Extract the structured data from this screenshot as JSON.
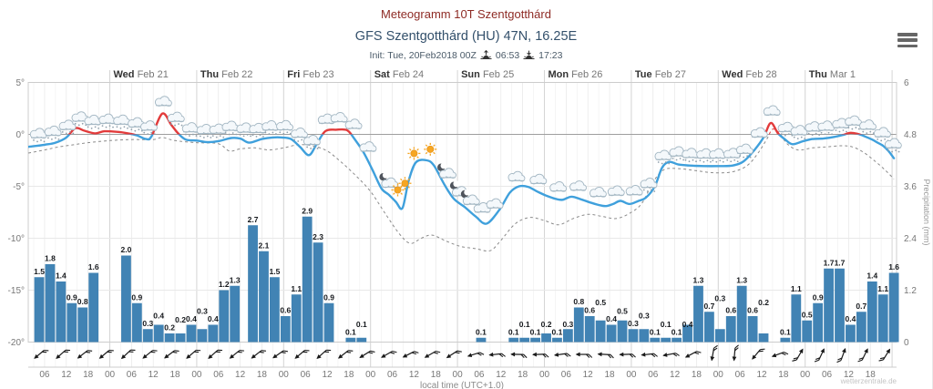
{
  "header": {
    "title": "Meteogramm 10T Szentgotthárd",
    "subtitle": "GFS Szentgotthárd (HU) 47N, 16.25E",
    "init_label": "Init: Tue, 20Feb2018 00Z",
    "sunrise": "06:53",
    "sunset": "17:23"
  },
  "menu": {
    "icon": "hamburger-menu-icon"
  },
  "chart_data": {
    "type": "meteogram (line + bar)",
    "title": "GFS Szentgotthárd (HU) 47N, 16.25E",
    "x_axis": {
      "unit": "hours since Tue 20Feb2018 00:00 local",
      "title": "local time (UTC+1.0)",
      "time_label_cycle": [
        "06",
        "12",
        "18",
        "00"
      ],
      "time_label_start": 6,
      "time_label_end": 234,
      "time_label_step": 6
    },
    "days": [
      {
        "label": "Wed",
        "date": "Feb 21"
      },
      {
        "label": "Thu",
        "date": "Feb 22"
      },
      {
        "label": "Fri",
        "date": "Feb 23"
      },
      {
        "label": "Sat",
        "date": "Feb 24"
      },
      {
        "label": "Sun",
        "date": "Feb 25"
      },
      {
        "label": "Mon",
        "date": "Feb 26"
      },
      {
        "label": "Tue",
        "date": "Feb 27"
      },
      {
        "label": "Wed",
        "date": "Feb 28"
      },
      {
        "label": "Thu",
        "date": "Mar 1"
      }
    ],
    "temp_axis": {
      "ticks": [
        {
          "label": "5°",
          "v": 5
        },
        {
          "label": "0°",
          "v": 0
        },
        {
          "label": "-5°",
          "v": -5
        },
        {
          "label": "-10°",
          "v": -10
        },
        {
          "label": "-15°",
          "v": -15
        },
        {
          "label": "-20°",
          "v": -20
        }
      ]
    },
    "precip_axis": {
      "title": "Precipitation (mm)",
      "ticks": [
        {
          "label": "6",
          "v": 6
        },
        {
          "label": "4.8",
          "v": 4.8
        },
        {
          "label": "3.6",
          "v": 3.6
        },
        {
          "label": "2.4",
          "v": 2.4
        },
        {
          "label": "1.2",
          "v": 1.2
        },
        {
          "label": "0",
          "v": 0
        }
      ]
    },
    "temperature_c": [
      [
        1.5,
        -1.2
      ],
      [
        6,
        -1.0
      ],
      [
        9,
        -0.8
      ],
      [
        12,
        -0.3
      ],
      [
        14.5,
        0.6
      ],
      [
        17,
        0.35
      ],
      [
        20,
        0.1
      ],
      [
        22.5,
        0.3
      ],
      [
        26,
        0.25
      ],
      [
        29,
        0.1
      ],
      [
        31.5,
        -0.1
      ],
      [
        34,
        -0.45
      ],
      [
        35.5,
        -0.2
      ],
      [
        38.5,
        2.0
      ],
      [
        41,
        0.9
      ],
      [
        43,
        0.05
      ],
      [
        45,
        -0.5
      ],
      [
        48,
        -0.6
      ],
      [
        51,
        -0.75
      ],
      [
        54,
        -0.65
      ],
      [
        57.5,
        -0.35
      ],
      [
        60,
        -0.4
      ],
      [
        62.5,
        -0.8
      ],
      [
        66,
        -0.45
      ],
      [
        69,
        -0.3
      ],
      [
        71.5,
        -0.3
      ],
      [
        74,
        -0.45
      ],
      [
        76.5,
        -1.2
      ],
      [
        79,
        -2.0
      ],
      [
        81,
        -1.0
      ],
      [
        83.5,
        0.3
      ],
      [
        86.5,
        0.45
      ],
      [
        89.5,
        0.4
      ],
      [
        91.5,
        -0.4
      ],
      [
        94,
        -1.7
      ],
      [
        96.5,
        -3.4
      ],
      [
        99,
        -5.2
      ],
      [
        101,
        -5.8
      ],
      [
        103,
        -6.5
      ],
      [
        104.8,
        -7.1
      ],
      [
        106.5,
        -4.5
      ],
      [
        108.5,
        -2.7
      ],
      [
        111.5,
        -2.5
      ],
      [
        113.5,
        -3.0
      ],
      [
        116.5,
        -4.9
      ],
      [
        119,
        -6.2
      ],
      [
        122,
        -7.0
      ],
      [
        125,
        -7.9
      ],
      [
        128,
        -8.6
      ],
      [
        131.5,
        -7.3
      ],
      [
        134.5,
        -5.6
      ],
      [
        137,
        -5.0
      ],
      [
        139.5,
        -5.05
      ],
      [
        142,
        -5.5
      ],
      [
        144.5,
        -5.9
      ],
      [
        147,
        -6.2
      ],
      [
        149,
        -6.3
      ],
      [
        151.5,
        -6.0
      ],
      [
        154.5,
        -6.3
      ],
      [
        157,
        -6.6
      ],
      [
        159,
        -6.8
      ],
      [
        161,
        -6.9
      ],
      [
        163,
        -6.7
      ],
      [
        165,
        -6.4
      ],
      [
        167.5,
        -6.7
      ],
      [
        170,
        -6.4
      ],
      [
        172,
        -6.1
      ],
      [
        174.5,
        -5.0
      ],
      [
        176.5,
        -3.2
      ],
      [
        178.5,
        -2.65
      ],
      [
        181,
        -2.9
      ],
      [
        184,
        -3.0
      ],
      [
        188,
        -3.05
      ],
      [
        192,
        -3.05
      ],
      [
        196,
        -3.0
      ],
      [
        199,
        -2.6
      ],
      [
        202,
        -1.5
      ],
      [
        204.5,
        -0.3
      ],
      [
        206.5,
        1.1
      ],
      [
        208.5,
        0.1
      ],
      [
        210.5,
        -0.5
      ],
      [
        212.5,
        -0.95
      ],
      [
        215.5,
        -0.65
      ],
      [
        218,
        -0.45
      ],
      [
        221,
        -0.4
      ],
      [
        224,
        -0.25
      ],
      [
        226.5,
        -0.05
      ],
      [
        228.5,
        0.15
      ],
      [
        230.5,
        0.05
      ],
      [
        232.5,
        -0.2
      ],
      [
        234.5,
        -0.5
      ],
      [
        236,
        -0.8
      ],
      [
        237.5,
        -1.1
      ],
      [
        239,
        -1.6
      ],
      [
        240.5,
        -2.3
      ]
    ],
    "dewpoint_c": [
      [
        1.5,
        -1.8
      ],
      [
        6,
        -1.5
      ],
      [
        10,
        -1.2
      ],
      [
        14,
        -1.0
      ],
      [
        18,
        -0.8
      ],
      [
        24,
        -0.6
      ],
      [
        30,
        -0.5
      ],
      [
        36,
        -0.5
      ],
      [
        38.5,
        -0.3
      ],
      [
        42,
        -0.6
      ],
      [
        48,
        -0.8
      ],
      [
        54,
        -0.9
      ],
      [
        57,
        -1.6
      ],
      [
        60,
        -1.4
      ],
      [
        64,
        -1.3
      ],
      [
        68,
        -1.5
      ],
      [
        72,
        -1.3
      ],
      [
        76,
        -1.0
      ],
      [
        80,
        -1.1
      ],
      [
        84,
        -1.6
      ],
      [
        88,
        -2.7
      ],
      [
        92,
        -4.0
      ],
      [
        96,
        -5.5
      ],
      [
        100,
        -7.6
      ],
      [
        104,
        -9.6
      ],
      [
        107,
        -10.5
      ],
      [
        110,
        -10.0
      ],
      [
        113,
        -9.7
      ],
      [
        117,
        -10.3
      ],
      [
        121,
        -10.8
      ],
      [
        125,
        -11.0
      ],
      [
        129,
        -11.2
      ],
      [
        132,
        -10.2
      ],
      [
        136,
        -8.6
      ],
      [
        140,
        -8.0
      ],
      [
        144,
        -8.3
      ],
      [
        148,
        -8.7
      ],
      [
        152,
        -8.1
      ],
      [
        156,
        -7.7
      ],
      [
        160,
        -7.9
      ],
      [
        164,
        -8.1
      ],
      [
        168,
        -7.5
      ],
      [
        171,
        -6.6
      ],
      [
        174,
        -4.6
      ],
      [
        177,
        -3.4
      ],
      [
        181,
        -3.3
      ],
      [
        186,
        -3.5
      ],
      [
        191,
        -3.7
      ],
      [
        196,
        -3.6
      ],
      [
        200,
        -3.0
      ],
      [
        203,
        -1.8
      ],
      [
        205.5,
        -0.4
      ],
      [
        207,
        0.5
      ],
      [
        209,
        0.1
      ],
      [
        211,
        -0.9
      ],
      [
        214,
        -1.5
      ],
      [
        218,
        -1.3
      ],
      [
        222,
        -1.2
      ],
      [
        226,
        -1.1
      ],
      [
        229,
        -1.2
      ],
      [
        232,
        -1.7
      ],
      [
        235,
        -2.5
      ],
      [
        238,
        -3.4
      ],
      [
        240.5,
        -4.3
      ]
    ],
    "precip_bars_mm_3h": [
      [
        3,
        1.5
      ],
      [
        6,
        1.8
      ],
      [
        9,
        1.4
      ],
      [
        12,
        0.9
      ],
      [
        15,
        0.8
      ],
      [
        18,
        1.6
      ],
      [
        27,
        2.0
      ],
      [
        30,
        0.9
      ],
      [
        33,
        0.3
      ],
      [
        36,
        0.4
      ],
      [
        39,
        0.2
      ],
      [
        42,
        0.2
      ],
      [
        45,
        0.4
      ],
      [
        48,
        0.3
      ],
      [
        51,
        0.4
      ],
      [
        54,
        1.2
      ],
      [
        57,
        1.3
      ],
      [
        62,
        2.7
      ],
      [
        65,
        2.1
      ],
      [
        68,
        1.5
      ],
      [
        71,
        0.6
      ],
      [
        74,
        1.1
      ],
      [
        77,
        2.9
      ],
      [
        80,
        2.3
      ],
      [
        83,
        0.9
      ],
      [
        89,
        0.1
      ],
      [
        92,
        0.1
      ],
      [
        125,
        0.1
      ],
      [
        134,
        0.1
      ],
      [
        137,
        0.1
      ],
      [
        140,
        0.1
      ],
      [
        143,
        0.2
      ],
      [
        146,
        0.1
      ],
      [
        149,
        0.3
      ],
      [
        152,
        0.8
      ],
      [
        155,
        0.6
      ],
      [
        158,
        0.5
      ],
      [
        161,
        0.4
      ],
      [
        164,
        0.5
      ],
      [
        167,
        0.3
      ],
      [
        170,
        0.3
      ],
      [
        173,
        0.1
      ],
      [
        176,
        0.1
      ],
      [
        179,
        0.1
      ],
      [
        182,
        0.4
      ],
      [
        185,
        1.3
      ],
      [
        188,
        0.7
      ],
      [
        191,
        0.3
      ],
      [
        194,
        0.6
      ],
      [
        197,
        1.3
      ],
      [
        200,
        0.6
      ],
      [
        203,
        0.2
      ],
      [
        209,
        0.1
      ],
      [
        212,
        1.1
      ],
      [
        215,
        0.5
      ],
      [
        218,
        0.9
      ],
      [
        221,
        1.7
      ],
      [
        224,
        1.7
      ],
      [
        227,
        0.4
      ],
      [
        230,
        0.7
      ],
      [
        233,
        1.4
      ],
      [
        236,
        1.1
      ],
      [
        239,
        1.6
      ]
    ],
    "weather_icons": [
      [
        4,
        "sc"
      ],
      [
        8,
        "sc"
      ],
      [
        12,
        "sc"
      ],
      [
        15.5,
        "sc"
      ],
      [
        19,
        "sc"
      ],
      [
        23,
        "sc"
      ],
      [
        27,
        "sc"
      ],
      [
        31,
        "sc"
      ],
      [
        34.5,
        "sc"
      ],
      [
        38.5,
        "c"
      ],
      [
        42,
        "sc"
      ],
      [
        46,
        "sc"
      ],
      [
        50,
        "sc"
      ],
      [
        53.5,
        "sc"
      ],
      [
        57,
        "sc"
      ],
      [
        61,
        "sc"
      ],
      [
        64.5,
        "sc"
      ],
      [
        68,
        "sc"
      ],
      [
        72,
        "sc"
      ],
      [
        76,
        "sc"
      ],
      [
        79.5,
        "sc"
      ],
      [
        83.5,
        "c"
      ],
      [
        87,
        "c"
      ],
      [
        91,
        "c"
      ],
      [
        95,
        "c"
      ],
      [
        100,
        "mc"
      ],
      [
        103.5,
        "s"
      ],
      [
        105.5,
        "s"
      ],
      [
        108,
        "s"
      ],
      [
        112.5,
        "s"
      ],
      [
        116,
        "mc"
      ],
      [
        119.5,
        "mc"
      ],
      [
        122.5,
        "mc"
      ],
      [
        126.5,
        "c"
      ],
      [
        130,
        "c"
      ],
      [
        136,
        "c"
      ],
      [
        142,
        "c"
      ],
      [
        147.5,
        "c"
      ],
      [
        153,
        "c"
      ],
      [
        158.5,
        "c"
      ],
      [
        163.5,
        "c"
      ],
      [
        168.5,
        "c"
      ],
      [
        172.5,
        "sc"
      ],
      [
        176.5,
        "sc"
      ],
      [
        180.5,
        "sc"
      ],
      [
        184,
        "sc"
      ],
      [
        188,
        "sc"
      ],
      [
        191.5,
        "sc"
      ],
      [
        195.5,
        "sc"
      ],
      [
        199,
        "sc"
      ],
      [
        203,
        "c"
      ],
      [
        206.5,
        "c"
      ],
      [
        210.5,
        "sc"
      ],
      [
        214,
        "sc"
      ],
      [
        218,
        "sc"
      ],
      [
        221.5,
        "sc"
      ],
      [
        225.5,
        "sc"
      ],
      [
        229,
        "sc"
      ],
      [
        233,
        "sc"
      ],
      [
        237,
        "sc"
      ],
      [
        240,
        "sc"
      ]
    ],
    "icon_legend": {
      "sc": "snow-cloud-icon",
      "c": "cloud-icon",
      "s": "sun-icon",
      "m": "moon-icon",
      "mc": "moon-cloud-icon"
    },
    "wind_barbs": [
      [
        3,
        140
      ],
      [
        9,
        138
      ],
      [
        15,
        142
      ],
      [
        21,
        140
      ],
      [
        27,
        137
      ],
      [
        33,
        141
      ],
      [
        39,
        143
      ],
      [
        45,
        139
      ],
      [
        51,
        138
      ],
      [
        57,
        141
      ],
      [
        63,
        142
      ],
      [
        69,
        145
      ],
      [
        75,
        140
      ],
      [
        81,
        138
      ],
      [
        87,
        142
      ],
      [
        93,
        148
      ],
      [
        99,
        150
      ],
      [
        105,
        153
      ],
      [
        111,
        150
      ],
      [
        117,
        147
      ],
      [
        123,
        163
      ],
      [
        129,
        174
      ],
      [
        135,
        181
      ],
      [
        141,
        178
      ],
      [
        147,
        172
      ],
      [
        153,
        180
      ],
      [
        159,
        183
      ],
      [
        165,
        178
      ],
      [
        171,
        174
      ],
      [
        177,
        169
      ],
      [
        183,
        152
      ],
      [
        189,
        100
      ],
      [
        195,
        95
      ],
      [
        201,
        130
      ],
      [
        207,
        160
      ],
      [
        213,
        300
      ],
      [
        219,
        295
      ],
      [
        225,
        290
      ],
      [
        231,
        296
      ],
      [
        237,
        302
      ]
    ],
    "watermark": "wetterzentrale.de",
    "colors": {
      "title": "#8e2b25",
      "subtitle": "#33506b",
      "bar": "#4183b4",
      "temp_line": "#3fa0dc",
      "above_zero": "#e23b3b",
      "dew_line": "#8a8a8a",
      "grid_minor": "#f1f1f1",
      "grid": "#e7e7e7",
      "grid_day": "#d5d5d5",
      "grid_h": "#e8e8e8",
      "zero_line": "#9e9e9e",
      "frame": "#cccccc",
      "sun": "#f6a623",
      "cloud_stroke": "#a5b8c4",
      "cloud_fill": "#f4f8fb",
      "snow_dot": "#90a0ac",
      "moon": "#4f545c",
      "wind": "#1a1a1a"
    }
  }
}
